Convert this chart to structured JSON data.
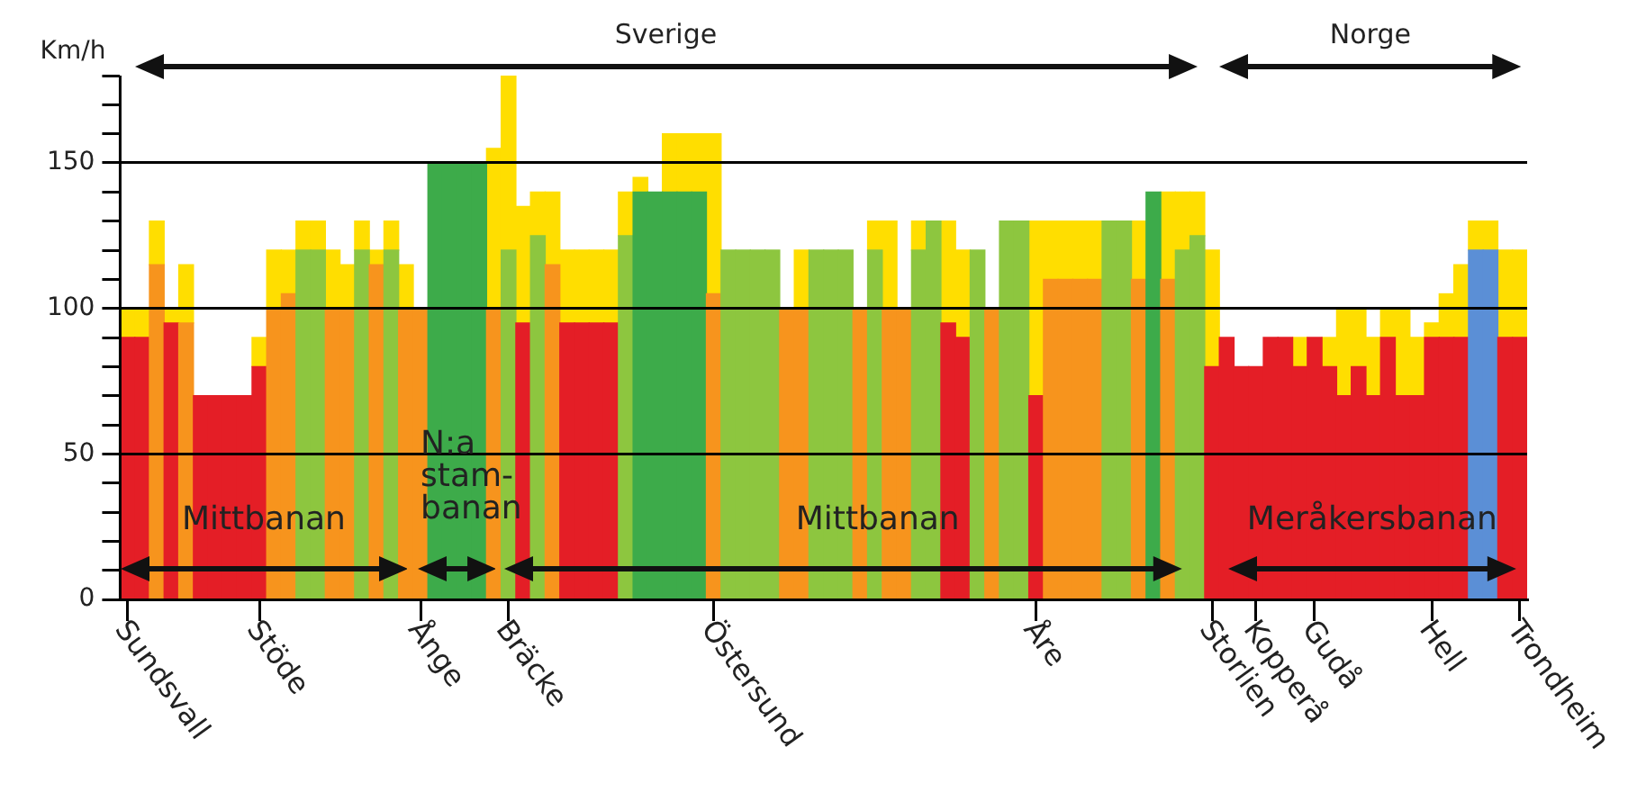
{
  "chart_data": {
    "type": "bar",
    "stacked": true,
    "ylabel": "Km/h",
    "annotations": [
      "Sverige",
      "Norge",
      "Mittbanan",
      "N:a\nstam-\nbanan",
      "Mittbanan",
      "Meråkersbanan"
    ],
    "categories": [
      "Sundsvall",
      null,
      null,
      null,
      null,
      null,
      null,
      null,
      null,
      "Stöde",
      null,
      null,
      null,
      null,
      null,
      null,
      null,
      null,
      null,
      null,
      "Ånge",
      null,
      null,
      null,
      null,
      null,
      "Bräcke",
      null,
      null,
      null,
      null,
      null,
      null,
      null,
      null,
      null,
      null,
      null,
      null,
      null,
      "Östersund",
      null,
      null,
      null,
      null,
      null,
      null,
      null,
      null,
      null,
      null,
      null,
      null,
      null,
      null,
      null,
      null,
      null,
      null,
      null,
      null,
      null,
      "Åre",
      null,
      null,
      null,
      null,
      null,
      null,
      null,
      null,
      null,
      null,
      null,
      "Storlien",
      null,
      null,
      "Kopperå",
      null,
      null,
      null,
      "Gudå",
      null,
      null,
      null,
      null,
      null,
      null,
      null,
      "Hell",
      null,
      null,
      null,
      null,
      null,
      "Trondheim"
    ],
    "series": [
      {
        "colors": [
          "#e41e26",
          "#e41e26",
          "#f7941d",
          "#e41e26",
          "#f7941d",
          "#e41e26",
          "#e41e26",
          "#e41e26",
          "#e41e26",
          "#e41e26",
          "#f7941d",
          "#f7941d",
          "#8dc63f",
          "#8dc63f",
          "#f7941d",
          "#f7941d",
          "#8dc63f",
          "#f7941d",
          "#8dc63f",
          "#f7941d",
          "#f7941d",
          "#3dab4a",
          "#3dab4a",
          "#3dab4a",
          "#3dab4a",
          "#f7941d",
          "#8dc63f",
          "#e41e26",
          "#8dc63f",
          "#f7941d",
          "#e41e26",
          "#e41e26",
          "#e41e26",
          "#e41e26",
          "#8dc63f",
          "#3dab4a",
          "#3dab4a",
          "#3dab4a",
          "#3dab4a",
          "#3dab4a",
          "#f7941d",
          "#8dc63f",
          "#8dc63f",
          "#8dc63f",
          "#8dc63f",
          "#f7941d",
          "#f7941d",
          "#8dc63f",
          "#8dc63f",
          "#8dc63f",
          "#f7941d",
          "#8dc63f",
          "#f7941d",
          "#f7941d",
          "#8dc63f",
          "#8dc63f",
          "#e41e26",
          "#e41e26",
          "#8dc63f",
          "#f7941d",
          "#8dc63f",
          "#8dc63f",
          "#e41e26",
          "#f7941d",
          "#f7941d",
          "#f7941d",
          "#f7941d",
          "#8dc63f",
          "#8dc63f",
          "#f7941d",
          "#3dab4a",
          "#f7941d",
          "#8dc63f",
          "#8dc63f",
          "#e41e26",
          "#e41e26",
          "#e41e26",
          "#e41e26",
          "#e41e26",
          "#e41e26",
          "#e41e26",
          "#e41e26",
          "#e41e26",
          "#e41e26",
          "#e41e26",
          "#e41e26",
          "#e41e26",
          "#e41e26",
          "#e41e26",
          "#e41e26",
          "#e41e26",
          "#e41e26",
          "#5b8fd6",
          "#5b8fd6",
          "#e41e26",
          "#e41e26"
        ],
        "values": [
          90,
          90,
          115,
          95,
          95,
          70,
          70,
          70,
          70,
          80,
          100,
          105,
          120,
          120,
          100,
          100,
          120,
          115,
          120,
          100,
          100,
          150,
          150,
          150,
          150,
          100,
          120,
          95,
          125,
          115,
          95,
          95,
          95,
          95,
          125,
          140,
          140,
          140,
          140,
          140,
          105,
          120,
          120,
          120,
          120,
          100,
          100,
          120,
          120,
          120,
          100,
          120,
          100,
          100,
          120,
          130,
          95,
          90,
          120,
          100,
          130,
          130,
          70,
          110,
          110,
          110,
          110,
          130,
          130,
          110,
          140,
          110,
          120,
          125,
          80,
          90,
          80,
          80,
          90,
          90,
          80,
          90,
          80,
          70,
          80,
          70,
          90,
          70,
          70,
          90,
          90,
          90,
          120,
          120,
          90,
          90
        ]
      },
      {
        "color": "#ffde00",
        "values": [
          10,
          10,
          15,
          5,
          20,
          null,
          null,
          null,
          null,
          10,
          20,
          15,
          10,
          10,
          20,
          15,
          10,
          5,
          10,
          15,
          null,
          null,
          null,
          null,
          null,
          55,
          60,
          40,
          15,
          25,
          25,
          25,
          25,
          25,
          15,
          5,
          null,
          20,
          20,
          20,
          55,
          null,
          null,
          null,
          null,
          null,
          20,
          null,
          null,
          null,
          null,
          10,
          30,
          null,
          10,
          null,
          35,
          30,
          null,
          null,
          null,
          null,
          60,
          20,
          20,
          20,
          20,
          null,
          null,
          20,
          null,
          30,
          20,
          15,
          40,
          null,
          null,
          null,
          null,
          null,
          10,
          null,
          10,
          30,
          20,
          20,
          10,
          30,
          20,
          5,
          15,
          25,
          10,
          10,
          30,
          30
        ]
      }
    ],
    "ylim": [
      0,
      180
    ],
    "yticks": [
      0,
      {
        "value": 10,
        "label": null
      },
      {
        "value": 20,
        "label": null
      },
      {
        "value": 30,
        "label": null
      },
      {
        "value": 40,
        "label": null
      },
      50,
      {
        "value": 60,
        "label": null
      },
      {
        "value": 70,
        "label": null
      },
      {
        "value": 80,
        "label": null
      },
      {
        "value": 90,
        "label": null
      },
      100,
      {
        "value": 110,
        "label": null
      },
      {
        "value": 120,
        "label": null
      },
      {
        "value": 130,
        "label": null
      },
      {
        "value": 140,
        "label": null
      },
      150,
      {
        "value": 160,
        "label": null
      },
      {
        "value": 170,
        "label": null
      },
      {
        "value": 180,
        "label": null
      }
    ],
    "grid": "y",
    "legend": false
  }
}
